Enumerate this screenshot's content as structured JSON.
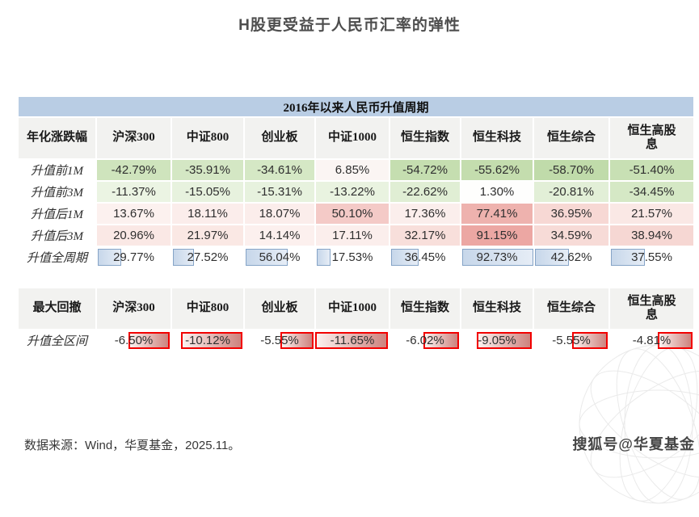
{
  "title": "H股更受益于人民币汇率的弹性",
  "table1": {
    "banner": "2016年以来人民币升值周期",
    "corner": "年化涨跌幅",
    "columns": [
      "沪深300",
      "中证800",
      "创业板",
      "中证1000",
      "恒生指数",
      "恒生科技",
      "恒生综合",
      "恒生高股息"
    ],
    "rows": [
      {
        "label": "升值前1M",
        "values": [
          "-42.79%",
          "-35.91%",
          "-34.61%",
          "6.85%",
          "-54.72%",
          "-55.62%",
          "-58.70%",
          "-51.40%"
        ],
        "bg": [
          "#cfe4bd",
          "#d4e7c4",
          "#d5e8c5",
          "#fbf5f3",
          "#c5deb0",
          "#c4ddae",
          "#c0dbaa",
          "#c8e0b4"
        ]
      },
      {
        "label": "升值前3M",
        "values": [
          "-11.37%",
          "-15.05%",
          "-15.31%",
          "-13.22%",
          "-22.62%",
          "1.30%",
          "-20.81%",
          "-34.45%"
        ],
        "bg": [
          "#ebf4e3",
          "#e7f2de",
          "#e7f2de",
          "#e9f3e0",
          "#e0eed4",
          "#fefefd",
          "#e2efd7",
          "#d5e8c5"
        ]
      },
      {
        "label": "升值后1M",
        "values": [
          "13.67%",
          "18.11%",
          "18.07%",
          "50.10%",
          "17.36%",
          "77.41%",
          "36.95%",
          "21.57%"
        ],
        "bg": [
          "#fcf1ef",
          "#fbedeb",
          "#fbedeb",
          "#f4cac7",
          "#fbeeec",
          "#eeb2ae",
          "#f7d8d4",
          "#fae8e5"
        ]
      },
      {
        "label": "升值后3M",
        "values": [
          "20.96%",
          "21.97%",
          "14.14%",
          "17.11%",
          "32.17%",
          "91.15%",
          "34.59%",
          "38.94%"
        ],
        "bg": [
          "#fae8e5",
          "#fae8e4",
          "#fcf0ee",
          "#fbeeec",
          "#f8dfdb",
          "#eca7a3",
          "#f7dbd7",
          "#f6d7d3"
        ]
      },
      {
        "label": "升值全周期",
        "values": [
          "29.77%",
          "27.52%",
          "56.04%",
          "17.53%",
          "36.45%",
          "92.73%",
          "42.62%",
          "37.55%"
        ],
        "bars": [
          32.1,
          29.7,
          60.4,
          18.9,
          39.3,
          100,
          46.0,
          40.5
        ]
      }
    ]
  },
  "table2": {
    "corner": "最大回撤",
    "columns": [
      "沪深300",
      "中证800",
      "创业板",
      "中证1000",
      "恒生指数",
      "恒生科技",
      "恒生综合",
      "恒生高股息"
    ],
    "row": {
      "label": "升值全区间",
      "values": [
        "-6.50%",
        "-10.12%",
        "-5.55%",
        "-11.65%",
        "-6.02%",
        "-9.05%",
        "-5.55%",
        "-4.81%"
      ],
      "bars": [
        55.8,
        86.9,
        47.6,
        100,
        51.7,
        77.7,
        47.6,
        41.3
      ]
    }
  },
  "footer": {
    "source": "数据来源：Wind，华夏基金，2025.11。"
  },
  "watermark": {
    "text": "搜狐号@华夏基金"
  },
  "colors": {
    "banner_bg": "#b9cde4",
    "header_bg": "#f2f2f0",
    "bar_blue_border": "#86a4c7",
    "bar_blue_fill": "#c7d7ea",
    "bar_red_border": "#f20000",
    "bar_red_fill": "#cd837e",
    "scale_green_max": "#c0dbaa",
    "scale_red_max": "#eca7a3"
  },
  "chart_data": [
    {
      "type": "table",
      "title": "2016年以来人民币升值周期",
      "row_header": "年化涨跌幅",
      "unit": "percent",
      "columns": [
        "沪深300",
        "中证800",
        "创业板",
        "中证1000",
        "恒生指数",
        "恒生科技",
        "恒生综合",
        "恒生高股息"
      ],
      "rows": [
        {
          "label": "升值前1M",
          "values": [
            -42.79,
            -35.91,
            -34.61,
            6.85,
            -54.72,
            -55.62,
            -58.7,
            -51.4
          ]
        },
        {
          "label": "升值前3M",
          "values": [
            -11.37,
            -15.05,
            -15.31,
            -13.22,
            -22.62,
            1.3,
            -20.81,
            -34.45
          ]
        },
        {
          "label": "升值后1M",
          "values": [
            13.67,
            18.11,
            18.07,
            50.1,
            17.36,
            77.41,
            36.95,
            21.57
          ]
        },
        {
          "label": "升值后3M",
          "values": [
            20.96,
            21.97,
            14.14,
            17.11,
            32.17,
            91.15,
            34.59,
            38.94
          ]
        },
        {
          "label": "升值全周期",
          "values": [
            29.77,
            27.52,
            56.04,
            17.53,
            36.45,
            92.73,
            42.62,
            37.55
          ]
        }
      ],
      "notes": "负值为绿色色阶，正值为红色色阶；升值全周期行带蓝色数据条"
    },
    {
      "type": "table",
      "row_header": "最大回撤",
      "unit": "percent",
      "columns": [
        "沪深300",
        "中证800",
        "创业板",
        "中证1000",
        "恒生指数",
        "恒生科技",
        "恒生综合",
        "恒生高股息"
      ],
      "rows": [
        {
          "label": "升值全区间",
          "values": [
            -6.5,
            -10.12,
            -5.55,
            -11.65,
            -6.02,
            -9.05,
            -5.55,
            -4.81
          ]
        }
      ],
      "notes": "红色数据条（右锚定）表示回撤幅度"
    }
  ]
}
